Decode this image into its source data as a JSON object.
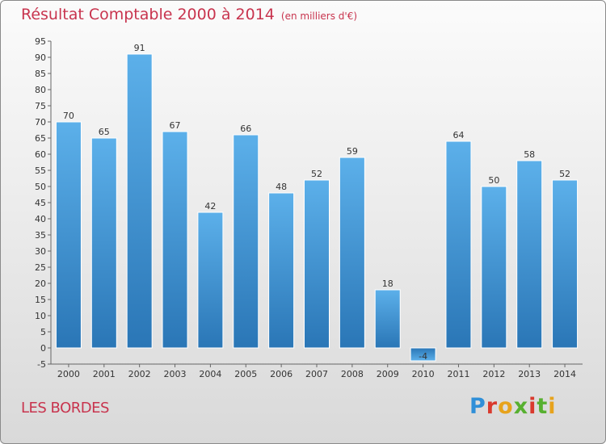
{
  "header": {
    "title": "Résultat Comptable 2000 à 2014",
    "subtitle": "(en milliers d'€)"
  },
  "footer": {
    "place": "LES BORDES",
    "logo": "Proxiti"
  },
  "colors": {
    "bar": "#3d8fd0",
    "title": "#c8344e"
  },
  "chart_data": {
    "type": "bar",
    "title": "Résultat Comptable 2000 à 2014",
    "subtitle": "(en milliers d'€)",
    "categories": [
      "2000",
      "2001",
      "2002",
      "2003",
      "2004",
      "2005",
      "2006",
      "2007",
      "2008",
      "2009",
      "2010",
      "2011",
      "2012",
      "2013",
      "2014"
    ],
    "values": [
      70,
      65,
      91,
      67,
      42,
      66,
      48,
      52,
      59,
      18,
      -4,
      64,
      50,
      58,
      52
    ],
    "data_labels": [
      "70",
      "65",
      "91",
      "67",
      "42",
      "66",
      "48",
      "52",
      "59",
      "18",
      "-4",
      "64",
      "50",
      "58",
      "52"
    ],
    "ylim": [
      -5,
      95
    ],
    "yticks": [
      -5,
      0,
      5,
      10,
      15,
      20,
      25,
      30,
      35,
      40,
      45,
      50,
      55,
      60,
      65,
      70,
      75,
      80,
      85,
      90,
      95
    ],
    "grid": false,
    "xlabel": "",
    "ylabel": ""
  }
}
